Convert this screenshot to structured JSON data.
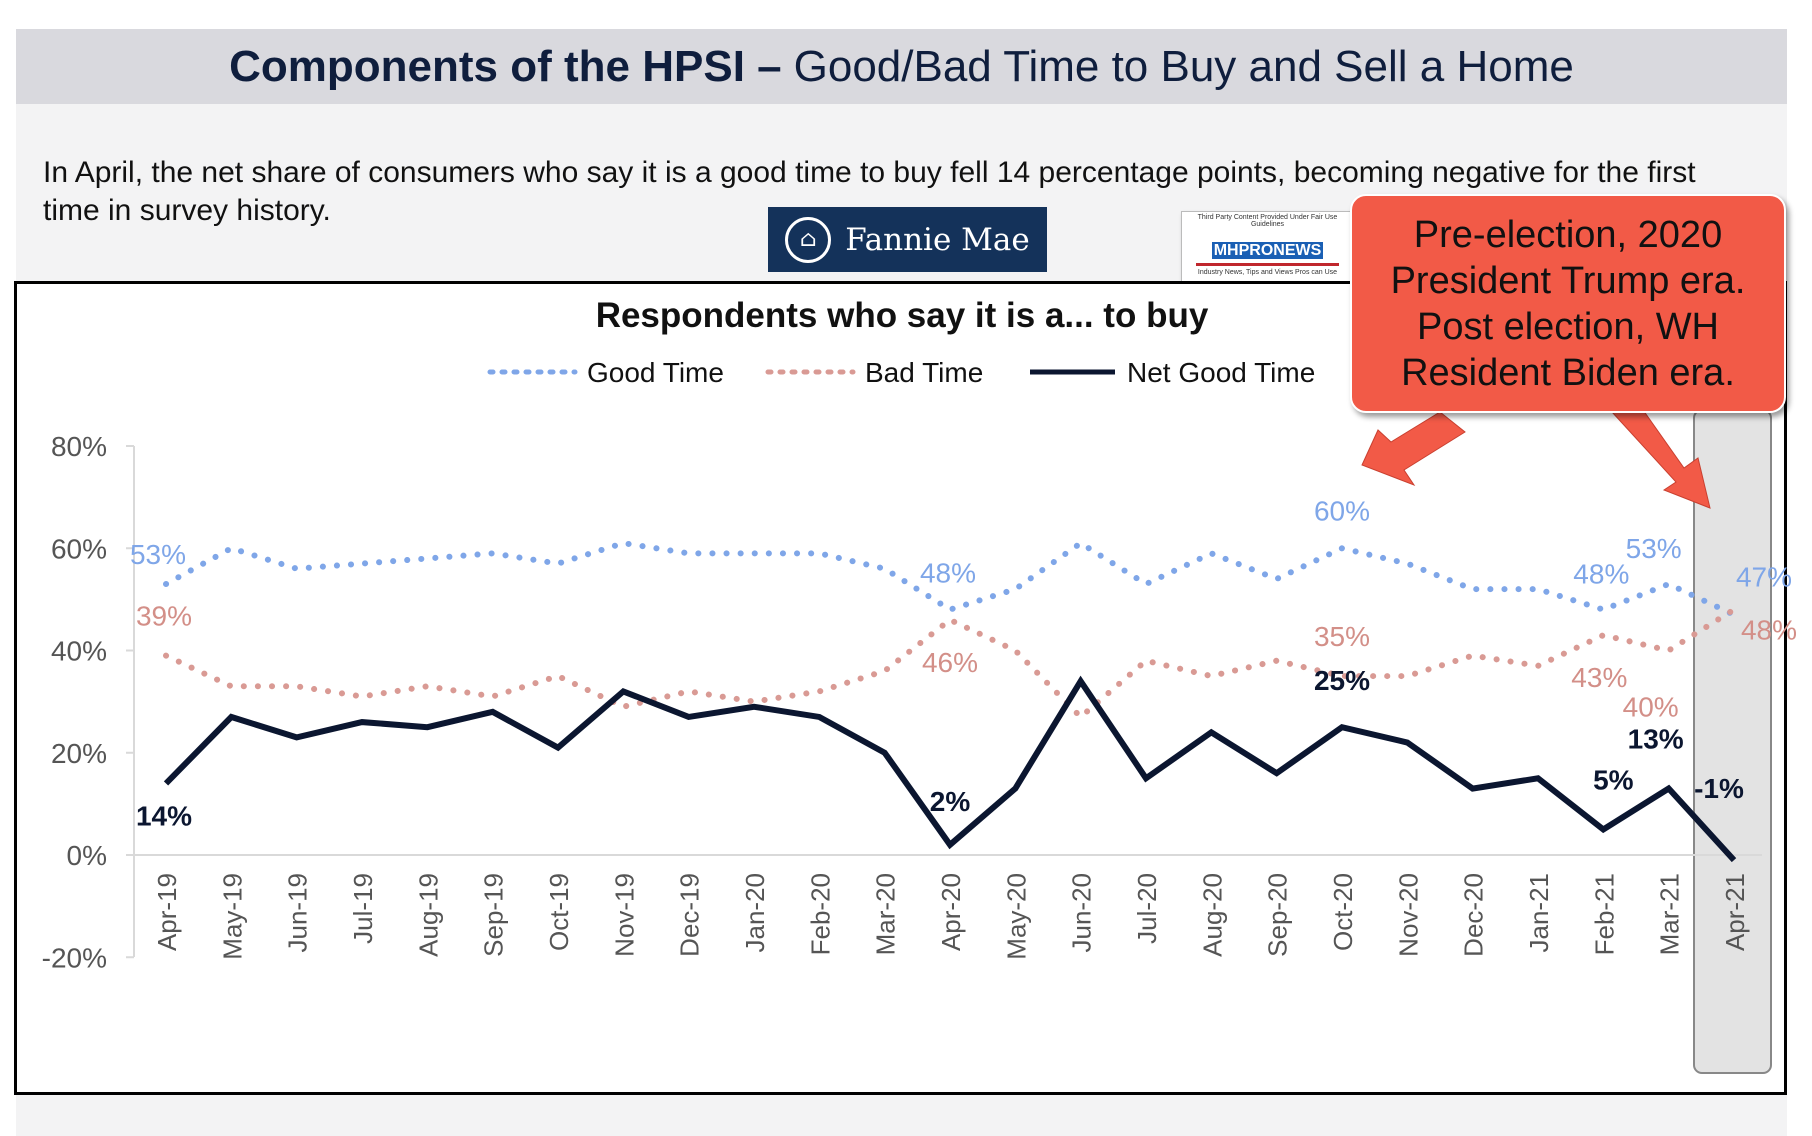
{
  "header": {
    "title_bold": "Components of the HPSI –",
    "title_rest": "Good/Bad Time to Buy and Sell a Home"
  },
  "subtitle": "In April, the net share of consumers who say it is a good time to buy fell 14 percentage points, becoming negative for the first time in survey history.",
  "logos": {
    "fannie_mae": "Fannie Mae",
    "mhpronews": "MHPRONEWS",
    "mhpronews_top": "Third Party Content Provided Under Fair Use Guidelines",
    "mhpronews_tag": "Industry News, Tips and Views Pros can Use"
  },
  "callout": {
    "lines": [
      "Pre-election, 2020",
      "President Trump era.",
      "Post election, WH",
      "Resident Biden era."
    ]
  },
  "colors": {
    "good": "#7fa6e8",
    "bad": "#d99a94",
    "net": "#0b1630",
    "callout": "#f25a47"
  },
  "chart_data": {
    "type": "line",
    "title": "Respondents who say it is a... to buy",
    "legend": [
      "Good Time",
      "Bad Time",
      "Net Good Time"
    ],
    "legend_position": "top",
    "ylim": [
      -20,
      80
    ],
    "yticks": [
      "80%",
      "60%",
      "40%",
      "20%",
      "0%",
      "-20%"
    ],
    "ytick_values": [
      80,
      60,
      40,
      20,
      0,
      -20
    ],
    "categories": [
      "Apr-19",
      "May-19",
      "Jun-19",
      "Jul-19",
      "Aug-19",
      "Sep-19",
      "Oct-19",
      "Nov-19",
      "Dec-19",
      "Jan-20",
      "Feb-20",
      "Mar-20",
      "Apr-20",
      "May-20",
      "Jun-20",
      "Jul-20",
      "Aug-20",
      "Sep-20",
      "Oct-20",
      "Nov-20",
      "Dec-20",
      "Jan-21",
      "Feb-21",
      "Mar-21",
      "Apr-21"
    ],
    "series": [
      {
        "name": "Good Time",
        "values": [
          53,
          60,
          56,
          57,
          58,
          59,
          57,
          61,
          59,
          59,
          59,
          56,
          48,
          52,
          61,
          53,
          59,
          54,
          60,
          57,
          52,
          52,
          48,
          53,
          47
        ]
      },
      {
        "name": "Bad Time",
        "values": [
          39,
          33,
          33,
          31,
          33,
          31,
          35,
          29,
          32,
          30,
          32,
          36,
          46,
          40,
          27,
          38,
          35,
          38,
          35,
          35,
          39,
          37,
          43,
          40,
          48
        ]
      },
      {
        "name": "Net Good Time",
        "values": [
          14,
          27,
          23,
          26,
          25,
          28,
          21,
          32,
          27,
          29,
          27,
          20,
          2,
          13,
          34,
          15,
          24,
          16,
          25,
          22,
          13,
          15,
          5,
          13,
          -1
        ]
      }
    ],
    "data_labels": [
      {
        "series": 0,
        "index": 0,
        "text": "53%"
      },
      {
        "series": 0,
        "index": 12,
        "text": "48%"
      },
      {
        "series": 0,
        "index": 18,
        "text": "60%"
      },
      {
        "series": 0,
        "index": 22,
        "text": "48%"
      },
      {
        "series": 0,
        "index": 23,
        "text": "53%"
      },
      {
        "series": 0,
        "index": 24,
        "text": "47%"
      },
      {
        "series": 1,
        "index": 0,
        "text": "39%"
      },
      {
        "series": 1,
        "index": 12,
        "text": "46%"
      },
      {
        "series": 1,
        "index": 18,
        "text": "35%"
      },
      {
        "series": 1,
        "index": 22,
        "text": "43%"
      },
      {
        "series": 1,
        "index": 23,
        "text": "40%"
      },
      {
        "series": 1,
        "index": 24,
        "text": "48%"
      },
      {
        "series": 2,
        "index": 0,
        "text": "14%"
      },
      {
        "series": 2,
        "index": 12,
        "text": "2%"
      },
      {
        "series": 2,
        "index": 18,
        "text": "25%"
      },
      {
        "series": 2,
        "index": 22,
        "text": "5%"
      },
      {
        "series": 2,
        "index": 23,
        "text": "13%"
      },
      {
        "series": 2,
        "index": 24,
        "text": "-1%"
      }
    ],
    "highlight_category": "Apr-21"
  }
}
